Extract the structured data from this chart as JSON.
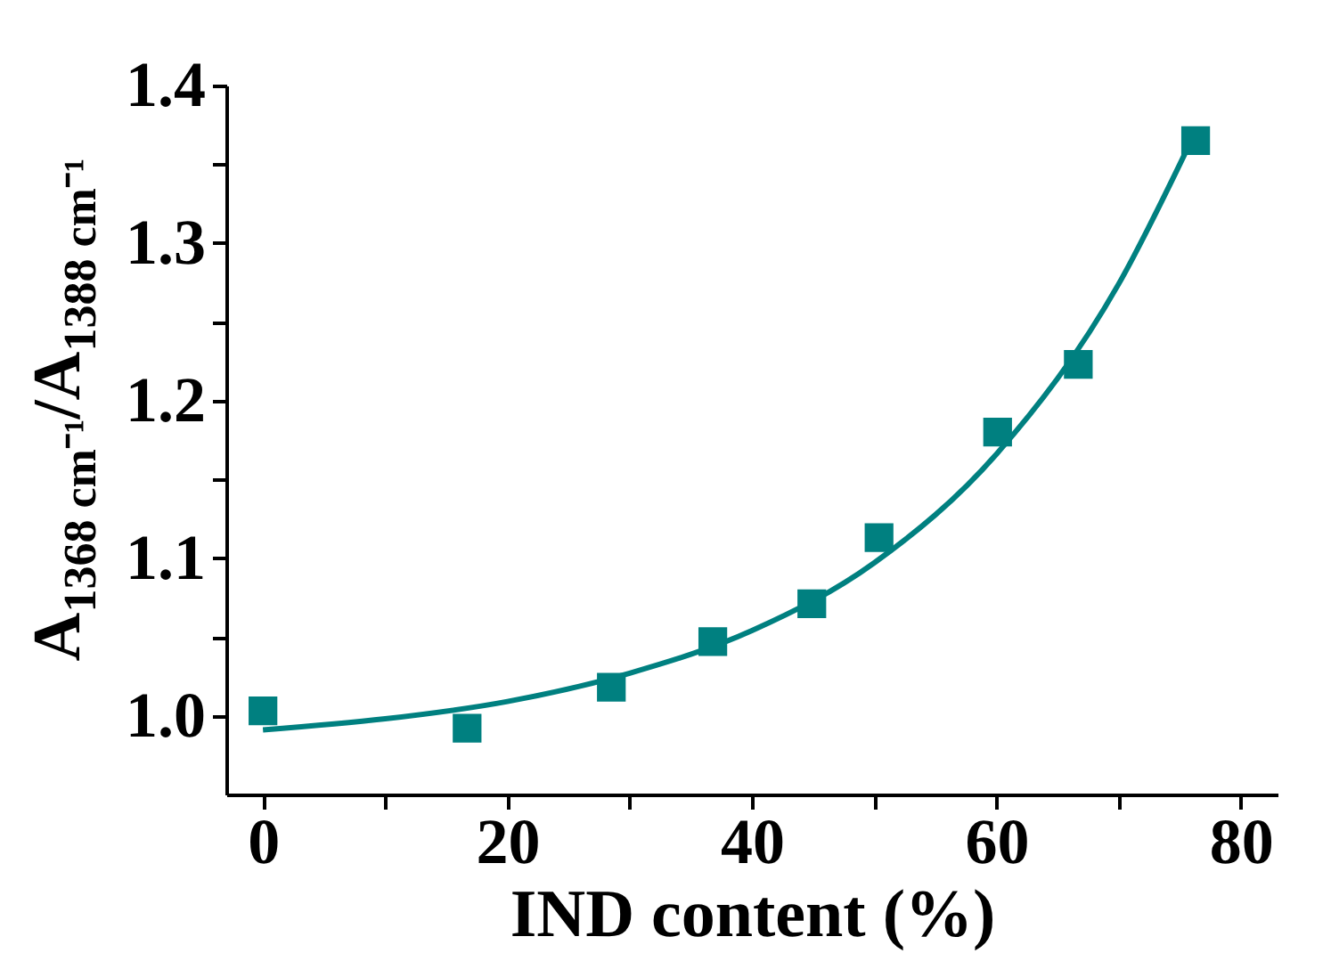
{
  "chart_data": {
    "type": "scatter",
    "xlabel": "IND content (%)",
    "ylabel": "A$_{1368 cm⁻¹}$/A$_{1388 cm⁻¹}$",
    "xlim": [
      -3,
      83
    ],
    "ylim": [
      0.95,
      1.4
    ],
    "xticks": [
      0,
      {
        "value": 10,
        "label": null
      },
      20,
      {
        "value": 30,
        "label": null
      },
      40,
      {
        "value": 50,
        "label": null
      },
      60,
      {
        "value": 70,
        "label": null
      },
      80
    ],
    "yticks": [
      {
        "value": 1.0,
        "label": "1.0"
      },
      {
        "value": 1.05,
        "label": null
      },
      1.1,
      {
        "value": 1.15,
        "label": null
      },
      1.2,
      {
        "value": 1.25,
        "label": null
      },
      1.3,
      {
        "value": 1.35,
        "label": null
      },
      1.4
    ],
    "grid": false,
    "series": [
      {
        "marker": "square",
        "color": "#008080",
        "x": [
          0,
          16.7,
          28.5,
          36.8,
          44.9,
          50.4,
          60.1,
          66.7,
          76.3
        ],
        "values": [
          1.003,
          0.992,
          1.018,
          1.047,
          1.071,
          1.113,
          1.18,
          1.223,
          1.365
        ]
      },
      {
        "type": "line",
        "marker": "none",
        "line_style": "solid",
        "color": "#008080",
        "x": [
          0,
          10,
          20,
          30,
          40,
          50,
          60,
          70,
          76
        ],
        "values": [
          0.991,
          0.998,
          1.009,
          1.027,
          1.054,
          1.097,
          1.166,
          1.274,
          1.366
        ]
      }
    ]
  }
}
